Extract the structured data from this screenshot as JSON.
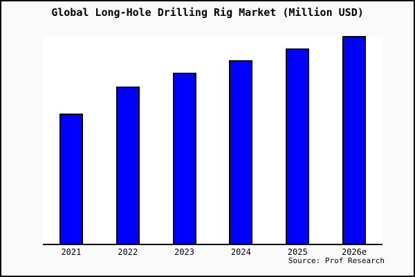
{
  "colors": {
    "frame_background": "#fafafa",
    "plot_background": "#ffffff",
    "border": "#000000",
    "bar_fill": "#0000ff",
    "bar_border": "#000000",
    "text": "#000000"
  },
  "chart_data": {
    "type": "bar",
    "title": "Global Long-Hole Drilling Rig Market (Million USD)",
    "categories": [
      "2021",
      "2022",
      "2023",
      "2024",
      "2025",
      "2026e"
    ],
    "values": [
      62.7,
      75.7,
      82.3,
      88.3,
      94.0,
      100.0
    ],
    "values_note": "relative bar heights as % of tallest bar; no numeric y-axis shown in image",
    "xlabel": "",
    "ylabel": "",
    "ylim": [
      0,
      100
    ],
    "y_axis_visible": false,
    "gridlines": false,
    "legend": false,
    "source": "Source: Prof Research",
    "bar_color": "#0000ff"
  }
}
